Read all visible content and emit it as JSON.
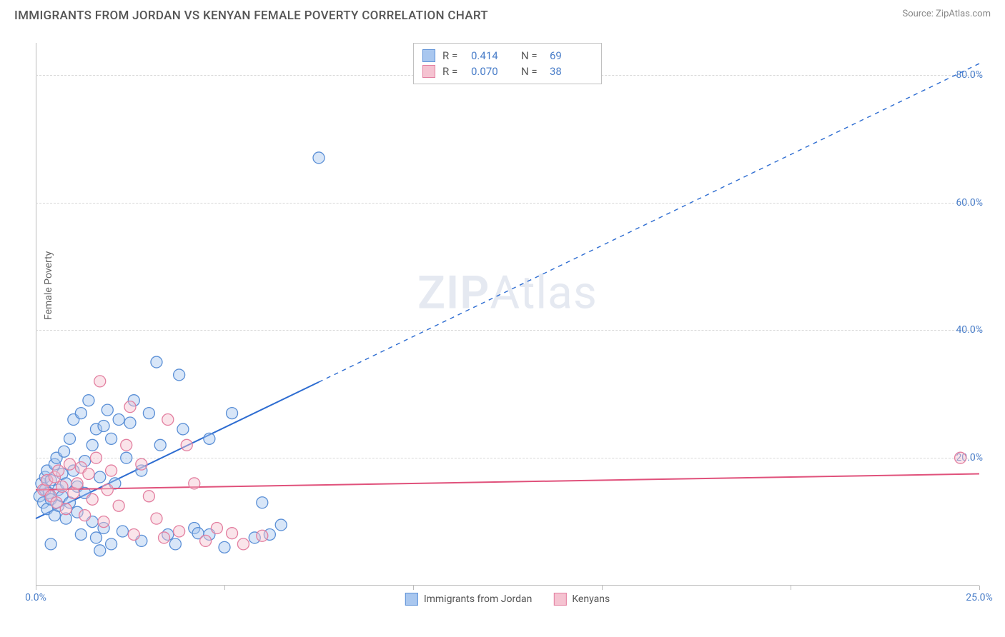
{
  "header": {
    "title": "IMMIGRANTS FROM JORDAN VS KENYAN FEMALE POVERTY CORRELATION CHART",
    "source": "Source: ZipAtlas.com"
  },
  "watermark": {
    "prefix": "ZIP",
    "suffix": "Atlas"
  },
  "chart": {
    "type": "scatter",
    "ylabel": "Female Poverty",
    "label_fontsize": 14,
    "background_color": "#ffffff",
    "grid_color": "#d8d8d8",
    "axis_color": "#bbbbbb",
    "tick_label_color": "#4a7ec9",
    "xlim": [
      0,
      25
    ],
    "ylim": [
      0,
      85
    ],
    "x_ticks": [
      0,
      5,
      10,
      15,
      20,
      25
    ],
    "x_tick_labels": [
      "0.0%",
      "",
      "",
      "",
      "",
      "25.0%"
    ],
    "y_ticks": [
      20,
      40,
      60,
      80
    ],
    "y_tick_labels": [
      "20.0%",
      "40.0%",
      "60.0%",
      "80.0%"
    ],
    "marker_radius": 8,
    "marker_fill_opacity": 0.45,
    "marker_stroke_width": 1.3,
    "series": [
      {
        "name": "Immigrants from Jordan",
        "fill_color": "#a9c7ef",
        "stroke_color": "#5a8fd6",
        "R": "0.414",
        "N": "69",
        "trend": {
          "slope": 2.85,
          "intercept": 10.5,
          "solid_until_x": 7.5,
          "color": "#2d6cd1",
          "width": 2
        },
        "points": [
          [
            0.1,
            14
          ],
          [
            0.15,
            16
          ],
          [
            0.2,
            13
          ],
          [
            0.25,
            17
          ],
          [
            0.25,
            15
          ],
          [
            0.3,
            12
          ],
          [
            0.3,
            18
          ],
          [
            0.35,
            14.5
          ],
          [
            0.4,
            16.5
          ],
          [
            0.4,
            13.5
          ],
          [
            0.5,
            19
          ],
          [
            0.5,
            11
          ],
          [
            0.55,
            20
          ],
          [
            0.6,
            15
          ],
          [
            0.6,
            12.5
          ],
          [
            0.7,
            17.5
          ],
          [
            0.7,
            14
          ],
          [
            0.75,
            21
          ],
          [
            0.8,
            10.5
          ],
          [
            0.8,
            16
          ],
          [
            0.9,
            23
          ],
          [
            0.9,
            13
          ],
          [
            1.0,
            18
          ],
          [
            1.0,
            26
          ],
          [
            1.1,
            11.5
          ],
          [
            1.1,
            15.5
          ],
          [
            1.2,
            27
          ],
          [
            1.2,
            8
          ],
          [
            1.3,
            19.5
          ],
          [
            1.3,
            14.5
          ],
          [
            1.4,
            29
          ],
          [
            1.5,
            22
          ],
          [
            1.5,
            10
          ],
          [
            1.6,
            24.5
          ],
          [
            1.6,
            7.5
          ],
          [
            1.7,
            17
          ],
          [
            1.8,
            25
          ],
          [
            1.8,
            9
          ],
          [
            1.9,
            27.5
          ],
          [
            2.0,
            23
          ],
          [
            2.0,
            6.5
          ],
          [
            2.1,
            16
          ],
          [
            2.2,
            26
          ],
          [
            2.3,
            8.5
          ],
          [
            2.4,
            20
          ],
          [
            2.5,
            25.5
          ],
          [
            2.6,
            29
          ],
          [
            2.8,
            18
          ],
          [
            2.8,
            7
          ],
          [
            3.0,
            27
          ],
          [
            3.2,
            35
          ],
          [
            3.3,
            22
          ],
          [
            3.5,
            8
          ],
          [
            3.7,
            6.5
          ],
          [
            3.8,
            33
          ],
          [
            3.9,
            24.5
          ],
          [
            4.2,
            9
          ],
          [
            4.3,
            8.2
          ],
          [
            4.6,
            23
          ],
          [
            4.6,
            8.0
          ],
          [
            5.0,
            6
          ],
          [
            5.2,
            27
          ],
          [
            5.8,
            7.5
          ],
          [
            6.0,
            13
          ],
          [
            6.2,
            8
          ],
          [
            6.5,
            9.5
          ],
          [
            7.5,
            67
          ],
          [
            0.4,
            6.5
          ],
          [
            1.7,
            5.5
          ]
        ]
      },
      {
        "name": "Kenyans",
        "fill_color": "#f5c3d1",
        "stroke_color": "#e37fa0",
        "R": "0.070",
        "N": "38",
        "trend": {
          "slope": 0.1,
          "intercept": 15,
          "solid_until_x": 25,
          "color": "#e0517b",
          "width": 2
        },
        "points": [
          [
            0.2,
            15
          ],
          [
            0.3,
            16.5
          ],
          [
            0.4,
            14
          ],
          [
            0.5,
            17
          ],
          [
            0.55,
            13
          ],
          [
            0.6,
            18
          ],
          [
            0.7,
            15.5
          ],
          [
            0.8,
            12
          ],
          [
            0.9,
            19
          ],
          [
            1.0,
            14.5
          ],
          [
            1.1,
            16
          ],
          [
            1.2,
            18.5
          ],
          [
            1.3,
            11
          ],
          [
            1.4,
            17.5
          ],
          [
            1.5,
            13.5
          ],
          [
            1.6,
            20
          ],
          [
            1.7,
            32
          ],
          [
            1.8,
            10
          ],
          [
            1.9,
            15
          ],
          [
            2.0,
            18
          ],
          [
            2.2,
            12.5
          ],
          [
            2.4,
            22
          ],
          [
            2.5,
            28
          ],
          [
            2.6,
            8
          ],
          [
            2.8,
            19
          ],
          [
            3.0,
            14
          ],
          [
            3.2,
            10.5
          ],
          [
            3.4,
            7.5
          ],
          [
            3.5,
            26
          ],
          [
            3.8,
            8.5
          ],
          [
            4.0,
            22
          ],
          [
            4.2,
            16
          ],
          [
            4.5,
            7
          ],
          [
            4.8,
            9
          ],
          [
            5.2,
            8.2
          ],
          [
            5.5,
            6.5
          ],
          [
            6.0,
            7.8
          ],
          [
            24.5,
            20
          ]
        ]
      }
    ],
    "legend_top": {
      "R_label": "R =",
      "N_label": "N ="
    },
    "legend_bottom": [
      {
        "swatch": "blue",
        "label": "Immigrants from Jordan"
      },
      {
        "swatch": "pink",
        "label": "Kenyans"
      }
    ]
  }
}
